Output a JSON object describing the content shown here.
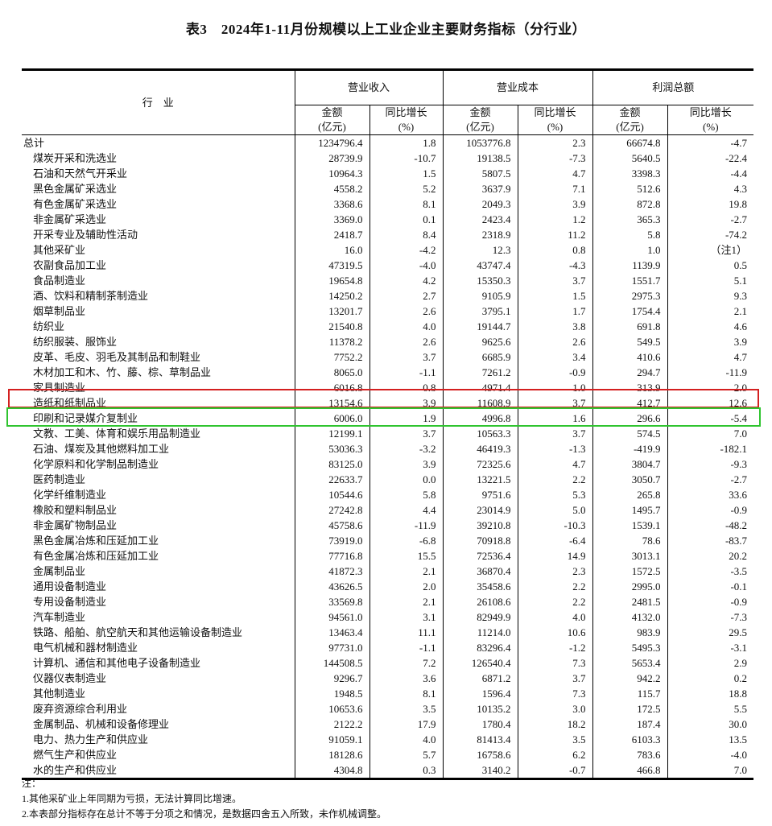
{
  "title": "表3　2024年1-11月份规模以上工业企业主要财务指标（分行业）",
  "header": {
    "industry": "行　业",
    "groups": [
      "营业收入",
      "营业成本",
      "利润总额"
    ],
    "amount": "金额",
    "amount_unit": "(亿元)",
    "growth": "同比增长",
    "growth_unit": "(%)"
  },
  "rows": [
    [
      "总计",
      "1234796.4",
      "1.8",
      "1053776.8",
      "2.3",
      "66674.8",
      "-4.7"
    ],
    [
      "煤炭开采和洗选业",
      "28739.9",
      "-10.7",
      "19138.5",
      "-7.3",
      "5640.5",
      "-22.4"
    ],
    [
      "石油和天然气开采业",
      "10964.3",
      "1.5",
      "5807.5",
      "4.7",
      "3398.3",
      "-4.4"
    ],
    [
      "黑色金属矿采选业",
      "4558.2",
      "5.2",
      "3637.9",
      "7.1",
      "512.6",
      "4.3"
    ],
    [
      "有色金属矿采选业",
      "3368.6",
      "8.1",
      "2049.3",
      "3.9",
      "872.8",
      "19.8"
    ],
    [
      "非金属矿采选业",
      "3369.0",
      "0.1",
      "2423.4",
      "1.2",
      "365.3",
      "-2.7"
    ],
    [
      "开采专业及辅助性活动",
      "2418.7",
      "8.4",
      "2318.9",
      "11.2",
      "5.8",
      "-74.2"
    ],
    [
      "其他采矿业",
      "16.0",
      "-4.2",
      "12.3",
      "0.8",
      "1.0",
      "（注1）"
    ],
    [
      "农副食品加工业",
      "47319.5",
      "-4.0",
      "43747.4",
      "-4.3",
      "1139.9",
      "0.5"
    ],
    [
      "食品制造业",
      "19654.8",
      "4.2",
      "15350.3",
      "3.7",
      "1551.7",
      "5.1"
    ],
    [
      "酒、饮料和精制茶制造业",
      "14250.2",
      "2.7",
      "9105.9",
      "1.5",
      "2975.3",
      "9.3"
    ],
    [
      "烟草制品业",
      "13201.7",
      "2.6",
      "3795.1",
      "1.7",
      "1754.4",
      "2.1"
    ],
    [
      "纺织业",
      "21540.8",
      "4.0",
      "19144.7",
      "3.8",
      "691.8",
      "4.6"
    ],
    [
      "纺织服装、服饰业",
      "11378.2",
      "2.6",
      "9625.6",
      "2.6",
      "549.5",
      "3.9"
    ],
    [
      "皮革、毛皮、羽毛及其制品和制鞋业",
      "7752.2",
      "3.7",
      "6685.9",
      "3.4",
      "410.6",
      "4.7"
    ],
    [
      "木材加工和木、竹、藤、棕、草制品业",
      "8065.0",
      "-1.1",
      "7261.2",
      "-0.9",
      "294.7",
      "-11.9"
    ],
    [
      "家具制造业",
      "6016.8",
      "0.8",
      "4971.4",
      "1.0",
      "313.9",
      "2.0"
    ],
    [
      "造纸和纸制品业",
      "13154.6",
      "3.9",
      "11608.9",
      "3.7",
      "412.7",
      "12.6"
    ],
    [
      "印刷和记录媒介复制业",
      "6006.0",
      "1.9",
      "4996.8",
      "1.6",
      "296.6",
      "-5.4"
    ],
    [
      "文教、工美、体育和娱乐用品制造业",
      "12199.1",
      "3.7",
      "10563.3",
      "3.7",
      "574.5",
      "7.0"
    ],
    [
      "石油、煤炭及其他燃料加工业",
      "53036.3",
      "-3.2",
      "46419.3",
      "-1.3",
      "-419.9",
      "-182.1"
    ],
    [
      "化学原料和化学制品制造业",
      "83125.0",
      "3.9",
      "72325.6",
      "4.7",
      "3804.7",
      "-9.3"
    ],
    [
      "医药制造业",
      "22633.7",
      "0.0",
      "13221.5",
      "2.2",
      "3050.7",
      "-2.7"
    ],
    [
      "化学纤维制造业",
      "10544.6",
      "5.8",
      "9751.6",
      "5.3",
      "265.8",
      "33.6"
    ],
    [
      "橡胶和塑料制品业",
      "27242.8",
      "4.4",
      "23014.9",
      "5.0",
      "1495.7",
      "-0.9"
    ],
    [
      "非金属矿物制品业",
      "45758.6",
      "-11.9",
      "39210.8",
      "-10.3",
      "1539.1",
      "-48.2"
    ],
    [
      "黑色金属冶炼和压延加工业",
      "73919.0",
      "-6.8",
      "70918.8",
      "-6.4",
      "78.6",
      "-83.7"
    ],
    [
      "有色金属冶炼和压延加工业",
      "77716.8",
      "15.5",
      "72536.4",
      "14.9",
      "3013.1",
      "20.2"
    ],
    [
      "金属制品业",
      "41872.3",
      "2.1",
      "36870.4",
      "2.3",
      "1572.5",
      "-3.5"
    ],
    [
      "通用设备制造业",
      "43626.5",
      "2.0",
      "35458.6",
      "2.2",
      "2995.0",
      "-0.1"
    ],
    [
      "专用设备制造业",
      "33569.8",
      "2.1",
      "26108.6",
      "2.2",
      "2481.5",
      "-0.9"
    ],
    [
      "汽车制造业",
      "94561.0",
      "3.1",
      "82949.9",
      "4.0",
      "4132.0",
      "-7.3"
    ],
    [
      "铁路、船舶、航空航天和其他运输设备制造业",
      "13463.4",
      "11.1",
      "11214.0",
      "10.6",
      "983.9",
      "29.5"
    ],
    [
      "电气机械和器材制造业",
      "97731.0",
      "-1.1",
      "83296.4",
      "-1.2",
      "5495.3",
      "-3.1"
    ],
    [
      "计算机、通信和其他电子设备制造业",
      "144508.5",
      "7.2",
      "126540.4",
      "7.3",
      "5653.4",
      "2.9"
    ],
    [
      "仪器仪表制造业",
      "9296.7",
      "3.6",
      "6871.2",
      "3.7",
      "942.2",
      "0.2"
    ],
    [
      "其他制造业",
      "1948.5",
      "8.1",
      "1596.4",
      "7.3",
      "115.7",
      "18.8"
    ],
    [
      "废弃资源综合利用业",
      "10653.6",
      "3.5",
      "10135.2",
      "3.0",
      "172.5",
      "5.5"
    ],
    [
      "金属制品、机械和设备修理业",
      "2122.2",
      "17.9",
      "1780.4",
      "18.2",
      "187.4",
      "30.0"
    ],
    [
      "电力、热力生产和供应业",
      "91059.1",
      "4.0",
      "81413.4",
      "3.5",
      "6103.3",
      "13.5"
    ],
    [
      "燃气生产和供应业",
      "18128.6",
      "5.7",
      "16758.6",
      "6.2",
      "783.6",
      "-4.0"
    ],
    [
      "水的生产和供应业",
      "4304.8",
      "0.3",
      "3140.2",
      "-0.7",
      "466.8",
      "7.0"
    ]
  ],
  "notes": [
    "注：",
    "1.其他采矿业上年同期为亏损，无法计算同比增速。",
    "2.本表部分指标存在总计不等于分项之和情况，是数据四舍五入所致，未作机械调整。"
  ],
  "highlights": {
    "red": "#d42020",
    "green": "#2fc42f"
  }
}
